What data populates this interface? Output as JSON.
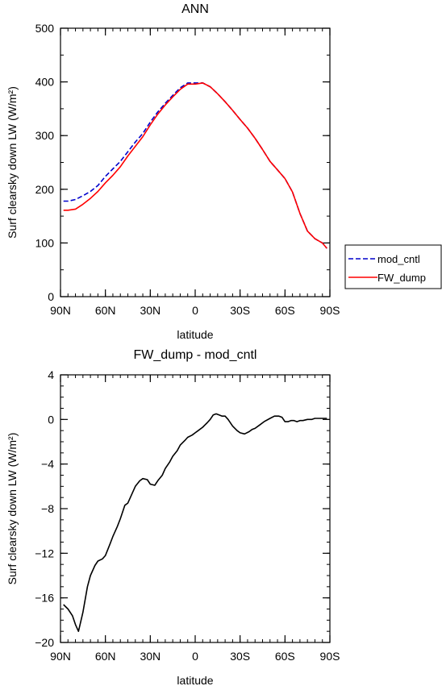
{
  "chart_data": [
    {
      "type": "line",
      "title": "ANN",
      "xlabel": "latitude",
      "ylabel": "Surf clearsky down LW (W/m²)",
      "xlim": [
        90,
        -90
      ],
      "ylim": [
        0,
        500
      ],
      "x_ticks": [
        {
          "value": 90,
          "label": "90N"
        },
        {
          "value": 60,
          "label": "60N"
        },
        {
          "value": 30,
          "label": "30N"
        },
        {
          "value": 0,
          "label": "0"
        },
        {
          "value": -30,
          "label": "30S"
        },
        {
          "value": -60,
          "label": "60S"
        },
        {
          "value": -90,
          "label": "90S"
        }
      ],
      "y_ticks": [
        {
          "value": 0,
          "label": "0"
        },
        {
          "value": 100,
          "label": "100"
        },
        {
          "value": 200,
          "label": "200"
        },
        {
          "value": 300,
          "label": "300"
        },
        {
          "value": 400,
          "label": "400"
        },
        {
          "value": 500,
          "label": "500"
        }
      ],
      "legend": "outside-right",
      "series": [
        {
          "name": "mod_cntl",
          "color": "#0000cc",
          "style": "dashed",
          "x": [
            88,
            85,
            80,
            75,
            70,
            65,
            60,
            55,
            50,
            45,
            40,
            35,
            30,
            25,
            20,
            15,
            10,
            5,
            0,
            -5,
            -10,
            -15,
            -20,
            -25,
            -30,
            -35,
            -40,
            -45,
            -50,
            -55,
            -60,
            -65,
            -70,
            -75,
            -80,
            -85,
            -88
          ],
          "y": [
            178,
            178,
            181,
            188,
            196,
            207,
            224,
            238,
            252,
            270,
            288,
            304,
            325,
            344,
            360,
            375,
            389,
            398,
            398,
            398,
            391,
            378,
            363,
            347,
            330,
            314,
            295,
            274,
            252,
            236,
            220,
            195,
            155,
            122,
            108,
            100,
            90
          ]
        },
        {
          "name": "FW_dump",
          "color": "#ff0000",
          "style": "solid",
          "x": [
            88,
            85,
            80,
            75,
            70,
            65,
            60,
            55,
            50,
            45,
            40,
            35,
            30,
            25,
            20,
            15,
            10,
            5,
            0,
            -5,
            -10,
            -15,
            -20,
            -25,
            -30,
            -35,
            -40,
            -45,
            -50,
            -55,
            -60,
            -65,
            -70,
            -75,
            -80,
            -85,
            -88
          ],
          "y": [
            161,
            161,
            163,
            172,
            183,
            196,
            212,
            226,
            242,
            262,
            280,
            298,
            320,
            340,
            357,
            372,
            386,
            396,
            396,
            398,
            391,
            378,
            363,
            347,
            330,
            314,
            295,
            274,
            252,
            236,
            220,
            195,
            155,
            122,
            108,
            100,
            90
          ]
        }
      ]
    },
    {
      "type": "line",
      "title": "FW_dump - mod_cntl",
      "xlabel": "latitude",
      "ylabel": "Surf clearsky down LW (W/m²)",
      "xlim": [
        90,
        -90
      ],
      "ylim": [
        -20,
        4
      ],
      "x_ticks": [
        {
          "value": 90,
          "label": "90N"
        },
        {
          "value": 60,
          "label": "60N"
        },
        {
          "value": 30,
          "label": "30N"
        },
        {
          "value": 0,
          "label": "0"
        },
        {
          "value": -30,
          "label": "30S"
        },
        {
          "value": -60,
          "label": "60S"
        },
        {
          "value": -90,
          "label": "90S"
        }
      ],
      "y_ticks": [
        {
          "value": -20,
          "label": "−20"
        },
        {
          "value": -16,
          "label": "−16"
        },
        {
          "value": -12,
          "label": "−12"
        },
        {
          "value": -8,
          "label": "−8"
        },
        {
          "value": -4,
          "label": "−4"
        },
        {
          "value": 0,
          "label": "0"
        },
        {
          "value": 4,
          "label": "4"
        }
      ],
      "series": [
        {
          "color": "#000000",
          "style": "solid",
          "x": [
            88,
            85,
            82,
            80,
            78,
            75,
            72,
            70,
            67,
            65,
            62,
            60,
            57,
            55,
            52,
            50,
            47,
            45,
            42,
            40,
            37,
            35,
            32,
            30,
            27,
            25,
            22,
            20,
            17,
            15,
            12,
            10,
            7,
            5,
            2,
            0,
            -2,
            -5,
            -8,
            -10,
            -12,
            -14,
            -16,
            -18,
            -20,
            -22,
            -25,
            -28,
            -30,
            -33,
            -36,
            -38,
            -40,
            -43,
            -46,
            -50,
            -53,
            -56,
            -58,
            -60,
            -62,
            -64,
            -66,
            -68,
            -70,
            -72,
            -75,
            -78,
            -80,
            -84,
            -88
          ],
          "y": [
            -16.6,
            -17.0,
            -17.6,
            -18.4,
            -19.0,
            -17.3,
            -15.0,
            -14.0,
            -13.1,
            -12.7,
            -12.5,
            -12.2,
            -11.2,
            -10.5,
            -9.6,
            -8.9,
            -7.7,
            -7.5,
            -6.6,
            -6.0,
            -5.5,
            -5.3,
            -5.4,
            -5.8,
            -5.9,
            -5.5,
            -5.0,
            -4.4,
            -3.8,
            -3.3,
            -2.8,
            -2.3,
            -1.9,
            -1.6,
            -1.4,
            -1.2,
            -1.0,
            -0.7,
            -0.3,
            0.0,
            0.4,
            0.5,
            0.4,
            0.3,
            0.3,
            0.0,
            -0.6,
            -1.0,
            -1.2,
            -1.3,
            -1.1,
            -0.9,
            -0.8,
            -0.5,
            -0.2,
            0.1,
            0.3,
            0.3,
            0.2,
            -0.2,
            -0.2,
            -0.1,
            -0.1,
            -0.2,
            -0.1,
            -0.1,
            0.0,
            0.0,
            0.1,
            0.1,
            0.1
          ]
        }
      ]
    }
  ]
}
